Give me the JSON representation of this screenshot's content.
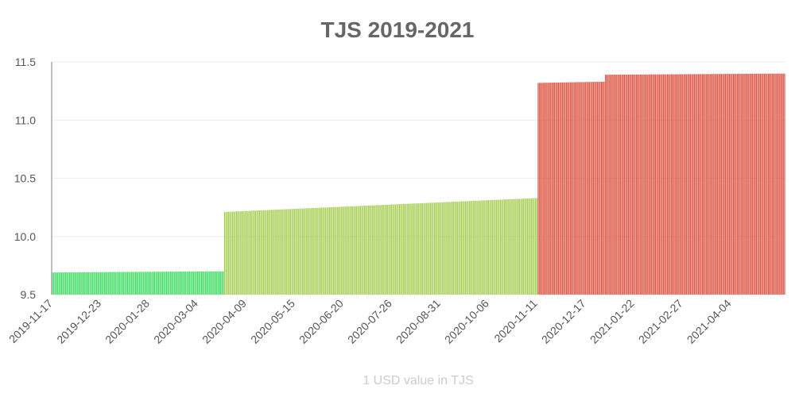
{
  "chart_data": {
    "type": "bar",
    "title": "TJS 2019-2021",
    "xlabel": "1 USD value in TJS",
    "ylabel": "",
    "ylim": [
      9.5,
      11.5
    ],
    "yticks": [
      "9.5",
      "10.0",
      "10.5",
      "11.0",
      "11.5"
    ],
    "x_start_date": "2019-11-17",
    "x_end_date": "2021-05-14",
    "xticks": [
      "2019-11-17",
      "2019-12-23",
      "2020-01-28",
      "2020-03-04",
      "2020-04-09",
      "2020-05-15",
      "2020-06-20",
      "2020-07-26",
      "2020-08-31",
      "2020-10-06",
      "2020-11-11",
      "2020-12-17",
      "2021-01-22",
      "2021-02-27",
      "2021-04-04"
    ],
    "grid": true,
    "legend": "none",
    "colors": {
      "low": "#44dd66",
      "mid": "#aad05a",
      "high": "#dd5544",
      "axis": "#aaaaaa",
      "grid": "#eeeeee"
    },
    "segments": [
      {
        "from": "2019-11-17",
        "to": "2020-03-23",
        "value_start": 9.69,
        "value_end": 9.7,
        "color": "low"
      },
      {
        "from": "2020-03-24",
        "to": "2020-11-11",
        "value_start": 10.21,
        "value_end": 10.33,
        "color": "mid"
      },
      {
        "from": "2020-11-12",
        "to": "2020-12-31",
        "value_start": 11.32,
        "value_end": 11.33,
        "color": "high"
      },
      {
        "from": "2021-01-01",
        "to": "2021-05-14",
        "value_start": 11.39,
        "value_end": 11.4,
        "color": "high"
      }
    ]
  }
}
